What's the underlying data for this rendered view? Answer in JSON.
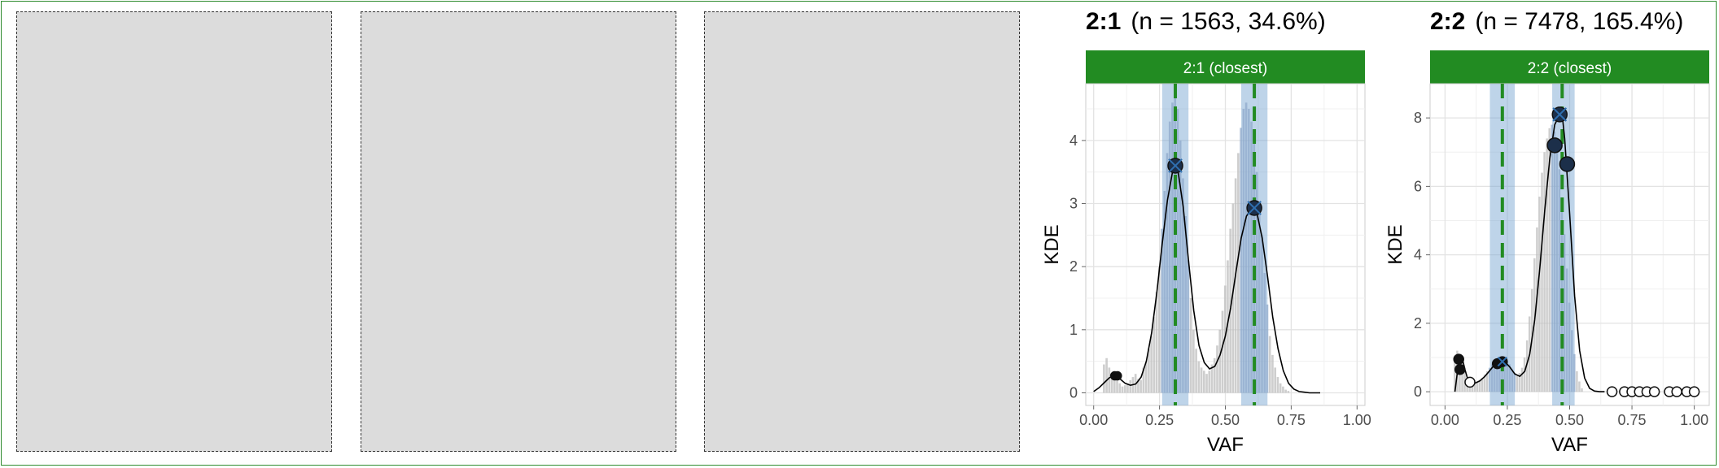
{
  "placeholders": [
    {
      "name": "empty-panel-1"
    },
    {
      "name": "empty-panel-2"
    },
    {
      "name": "empty-panel-3"
    }
  ],
  "colors": {
    "strip": "#228b22",
    "band": "#6f9fcf",
    "dashed_line": "#228b22",
    "kde_line": "#000000",
    "histogram": "#bdbdbd",
    "point": "#1c2f4a"
  },
  "chart_data": [
    {
      "type": "histogram",
      "title_bold": "2:1",
      "title_rest": "(n = 1563, 34.6%)",
      "strip_label": "2:1 (closest)",
      "xlabel": "VAF",
      "ylabel": "KDE",
      "xlim": [
        -0.03,
        1.03
      ],
      "ylim": [
        -0.2,
        4.9
      ],
      "x_ticks": [
        0,
        0.25,
        0.5,
        0.75,
        1
      ],
      "x_tick_labels": [
        "0.00",
        "0.25",
        "0.50",
        "0.75",
        "1.00"
      ],
      "y_ticks": [
        0,
        1,
        2,
        3,
        4
      ],
      "y_tick_labels": [
        "0",
        "1",
        "2",
        "3",
        "4"
      ],
      "grid": true,
      "bands": [
        {
          "x0": 0.26,
          "x1": 0.36
        },
        {
          "x0": 0.56,
          "x1": 0.66
        }
      ],
      "vlines": [
        0.31,
        0.61
      ],
      "kde": {
        "x": [
          0.0,
          0.02,
          0.04,
          0.06,
          0.08,
          0.1,
          0.12,
          0.14,
          0.16,
          0.18,
          0.2,
          0.22,
          0.24,
          0.26,
          0.28,
          0.3,
          0.31,
          0.32,
          0.34,
          0.36,
          0.38,
          0.4,
          0.42,
          0.44,
          0.46,
          0.48,
          0.5,
          0.52,
          0.54,
          0.56,
          0.58,
          0.6,
          0.61,
          0.62,
          0.64,
          0.66,
          0.68,
          0.7,
          0.72,
          0.74,
          0.76,
          0.78,
          0.8,
          0.82,
          0.84,
          0.86
        ],
        "y": [
          0.02,
          0.08,
          0.16,
          0.24,
          0.27,
          0.22,
          0.15,
          0.12,
          0.14,
          0.25,
          0.5,
          0.95,
          1.6,
          2.35,
          3.05,
          3.52,
          3.6,
          3.52,
          2.95,
          2.1,
          1.3,
          0.75,
          0.48,
          0.38,
          0.42,
          0.6,
          0.9,
          1.35,
          1.9,
          2.45,
          2.8,
          2.93,
          2.92,
          2.85,
          2.45,
          1.85,
          1.2,
          0.7,
          0.35,
          0.15,
          0.06,
          0.02,
          0.01,
          0.0,
          0.0,
          0.0
        ]
      },
      "histogram": {
        "bin_width": 0.01,
        "x": [
          0.04,
          0.05,
          0.06,
          0.07,
          0.08,
          0.09,
          0.1,
          0.11,
          0.12,
          0.13,
          0.14,
          0.15,
          0.16,
          0.17,
          0.18,
          0.19,
          0.2,
          0.21,
          0.22,
          0.23,
          0.24,
          0.25,
          0.26,
          0.27,
          0.28,
          0.29,
          0.3,
          0.31,
          0.32,
          0.33,
          0.34,
          0.35,
          0.36,
          0.37,
          0.38,
          0.39,
          0.4,
          0.41,
          0.42,
          0.43,
          0.44,
          0.45,
          0.46,
          0.47,
          0.48,
          0.49,
          0.5,
          0.51,
          0.52,
          0.53,
          0.54,
          0.55,
          0.56,
          0.57,
          0.58,
          0.59,
          0.6,
          0.61,
          0.62,
          0.63,
          0.64,
          0.65,
          0.66,
          0.67,
          0.68,
          0.69,
          0.7,
          0.71,
          0.72,
          0.73,
          0.74
        ],
        "y": [
          0.45,
          0.55,
          0.4,
          0.3,
          0.25,
          0.2,
          0.15,
          0.1,
          0.12,
          0.15,
          0.2,
          0.25,
          0.3,
          0.22,
          0.2,
          0.4,
          0.5,
          0.7,
          0.9,
          1.2,
          1.6,
          2.0,
          2.6,
          3.2,
          3.8,
          4.3,
          4.6,
          4.7,
          4.5,
          4.0,
          3.4,
          2.8,
          2.1,
          1.5,
          1.0,
          0.7,
          0.5,
          0.4,
          0.35,
          0.3,
          0.35,
          0.45,
          0.55,
          0.75,
          1.0,
          1.3,
          1.7,
          2.1,
          2.6,
          3.0,
          3.4,
          3.8,
          4.2,
          4.5,
          4.6,
          4.5,
          4.3,
          4.0,
          3.5,
          3.0,
          2.5,
          1.9,
          1.4,
          0.9,
          0.6,
          0.4,
          0.25,
          0.15,
          0.1,
          0.05,
          0.03
        ]
      },
      "points": [
        {
          "x": 0.08,
          "y": 0.27,
          "style": "filled",
          "size": "small"
        },
        {
          "x": 0.09,
          "y": 0.27,
          "style": "filled",
          "size": "small"
        },
        {
          "x": 0.31,
          "y": 3.6,
          "style": "filled",
          "size": "large",
          "cross": true
        },
        {
          "x": 0.61,
          "y": 2.93,
          "style": "filled",
          "size": "large",
          "cross": true
        }
      ]
    },
    {
      "type": "histogram",
      "title_bold": "2:2",
      "title_rest": "(n = 7478, 165.4%)",
      "strip_label": "2:2 (closest)",
      "xlabel": "VAF",
      "ylabel": "KDE",
      "xlim": [
        -0.06,
        1.06
      ],
      "ylim": [
        -0.4,
        9.0
      ],
      "x_ticks": [
        0,
        0.25,
        0.5,
        0.75,
        1
      ],
      "x_tick_labels": [
        "0.00",
        "0.25",
        "0.50",
        "0.75",
        "1.00"
      ],
      "y_ticks": [
        0,
        2,
        4,
        6,
        8
      ],
      "y_tick_labels": [
        "0",
        "2",
        "4",
        "6",
        "8"
      ],
      "grid": true,
      "bands": [
        {
          "x0": 0.18,
          "x1": 0.28
        },
        {
          "x0": 0.43,
          "x1": 0.52
        }
      ],
      "vlines": [
        0.23,
        0.47
      ],
      "kde": {
        "x": [
          0.04,
          0.05,
          0.06,
          0.07,
          0.08,
          0.09,
          0.1,
          0.12,
          0.14,
          0.16,
          0.18,
          0.2,
          0.22,
          0.24,
          0.26,
          0.28,
          0.3,
          0.32,
          0.34,
          0.36,
          0.38,
          0.4,
          0.42,
          0.44,
          0.46,
          0.47,
          0.48,
          0.5,
          0.52,
          0.54,
          0.56,
          0.58,
          0.6,
          0.62,
          0.64
        ],
        "y": [
          0.0,
          0.6,
          1.05,
          0.95,
          0.65,
          0.4,
          0.3,
          0.25,
          0.32,
          0.45,
          0.62,
          0.8,
          0.9,
          0.88,
          0.72,
          0.52,
          0.45,
          0.6,
          1.1,
          2.1,
          3.6,
          5.3,
          6.8,
          7.8,
          8.1,
          8.1,
          7.4,
          5.2,
          2.8,
          1.2,
          0.4,
          0.1,
          0.02,
          0.0,
          0.0
        ]
      },
      "histogram": {
        "bin_width": 0.01,
        "x": [
          0.04,
          0.05,
          0.06,
          0.07,
          0.08,
          0.09,
          0.1,
          0.11,
          0.12,
          0.13,
          0.14,
          0.15,
          0.16,
          0.17,
          0.18,
          0.19,
          0.2,
          0.21,
          0.22,
          0.23,
          0.24,
          0.25,
          0.26,
          0.27,
          0.28,
          0.29,
          0.3,
          0.31,
          0.32,
          0.33,
          0.34,
          0.35,
          0.36,
          0.37,
          0.38,
          0.39,
          0.4,
          0.41,
          0.42,
          0.43,
          0.44,
          0.45,
          0.46,
          0.47,
          0.48,
          0.49,
          0.5,
          0.51,
          0.52,
          0.53,
          0.54,
          0.55
        ],
        "y": [
          0.9,
          1.2,
          1.1,
          0.9,
          0.6,
          0.4,
          0.3,
          0.25,
          0.25,
          0.3,
          0.35,
          0.4,
          0.5,
          0.6,
          0.7,
          0.8,
          0.85,
          0.9,
          0.95,
          1.0,
          1.0,
          0.9,
          0.8,
          0.65,
          0.55,
          0.5,
          0.55,
          0.7,
          1.0,
          1.5,
          2.2,
          3.0,
          3.9,
          4.8,
          5.7,
          6.4,
          7.0,
          7.4,
          7.7,
          7.8,
          7.6,
          7.2,
          6.5,
          5.6,
          4.6,
          3.6,
          2.6,
          1.8,
          1.1,
          0.6,
          0.3,
          0.1
        ]
      },
      "points": [
        {
          "x": 0.055,
          "y": 0.95,
          "style": "filled",
          "size": "medium"
        },
        {
          "x": 0.06,
          "y": 0.65,
          "style": "filled",
          "size": "medium"
        },
        {
          "x": 0.1,
          "y": 0.28,
          "style": "open",
          "size": "medium"
        },
        {
          "x": 0.21,
          "y": 0.82,
          "style": "filled",
          "size": "medium"
        },
        {
          "x": 0.23,
          "y": 0.88,
          "style": "filled",
          "size": "medium",
          "cross": true
        },
        {
          "x": 0.44,
          "y": 7.2,
          "style": "filled",
          "size": "large"
        },
        {
          "x": 0.46,
          "y": 8.1,
          "style": "filled",
          "size": "large",
          "cross": true
        },
        {
          "x": 0.49,
          "y": 6.65,
          "style": "filled",
          "size": "large"
        },
        {
          "x": 0.67,
          "y": 0.0,
          "style": "open",
          "size": "medium"
        },
        {
          "x": 0.72,
          "y": 0.0,
          "style": "open",
          "size": "medium"
        },
        {
          "x": 0.75,
          "y": 0.0,
          "style": "open",
          "size": "medium"
        },
        {
          "x": 0.78,
          "y": 0.0,
          "style": "open",
          "size": "medium"
        },
        {
          "x": 0.81,
          "y": 0.0,
          "style": "open",
          "size": "medium"
        },
        {
          "x": 0.84,
          "y": 0.0,
          "style": "open",
          "size": "medium"
        },
        {
          "x": 0.9,
          "y": 0.0,
          "style": "open",
          "size": "medium"
        },
        {
          "x": 0.93,
          "y": 0.0,
          "style": "open",
          "size": "medium"
        },
        {
          "x": 0.97,
          "y": 0.0,
          "style": "open",
          "size": "medium"
        },
        {
          "x": 1.0,
          "y": 0.0,
          "style": "open",
          "size": "medium"
        }
      ]
    }
  ]
}
